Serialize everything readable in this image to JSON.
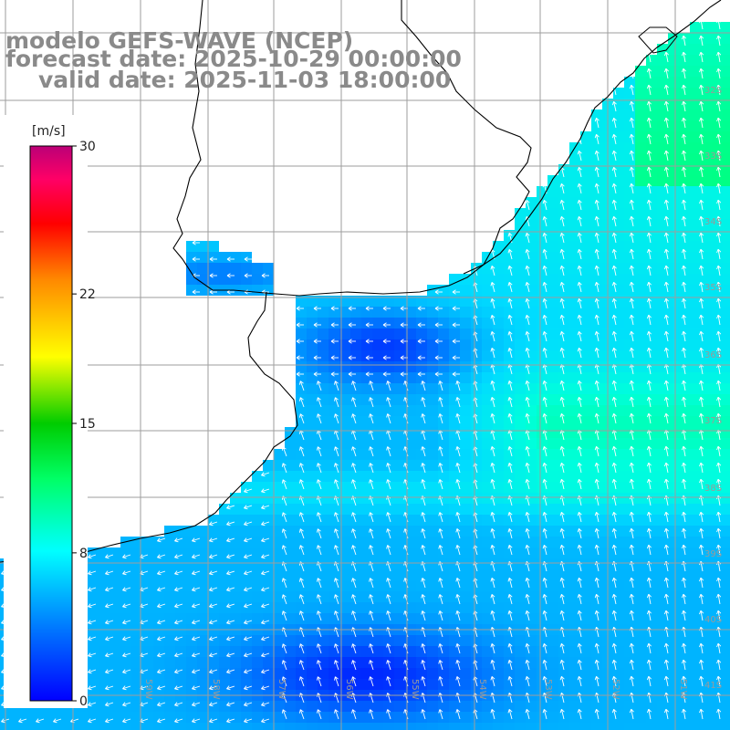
{
  "header": {
    "model": "modelo GEFS-WAVE (NCEP)",
    "forecast": "forecast date: 2025-10-29 00:00:00",
    "valid": "valid date: 2025-11-03 18:00:00"
  },
  "colorbar": {
    "unit": "[m/s]",
    "ticks": [
      {
        "label": "30",
        "value": 30
      },
      {
        "label": "22",
        "value": 22
      },
      {
        "label": "15",
        "value": 15
      },
      {
        "label": "8",
        "value": 8
      },
      {
        "label": "0",
        "value": 0
      }
    ],
    "colors": [
      "#0000ff",
      "#0099ff",
      "#00e5ff",
      "#00ff80",
      "#00cc00",
      "#ffff00",
      "#ff8800",
      "#ff0000",
      "#ff0066",
      "#c0007a"
    ]
  },
  "map": {
    "grid_color": "#9e9e9e",
    "coast_color": "#000000",
    "arrow_color": "#ffffff",
    "lat_labels": [
      "32S",
      "33S",
      "34S",
      "35S",
      "36S",
      "37S",
      "38S",
      "39S",
      "40S",
      "41S"
    ],
    "lon_labels": [
      "59W",
      "58W",
      "57W",
      "56W",
      "55W",
      "54W",
      "53W",
      "52W",
      "51W"
    ]
  }
}
